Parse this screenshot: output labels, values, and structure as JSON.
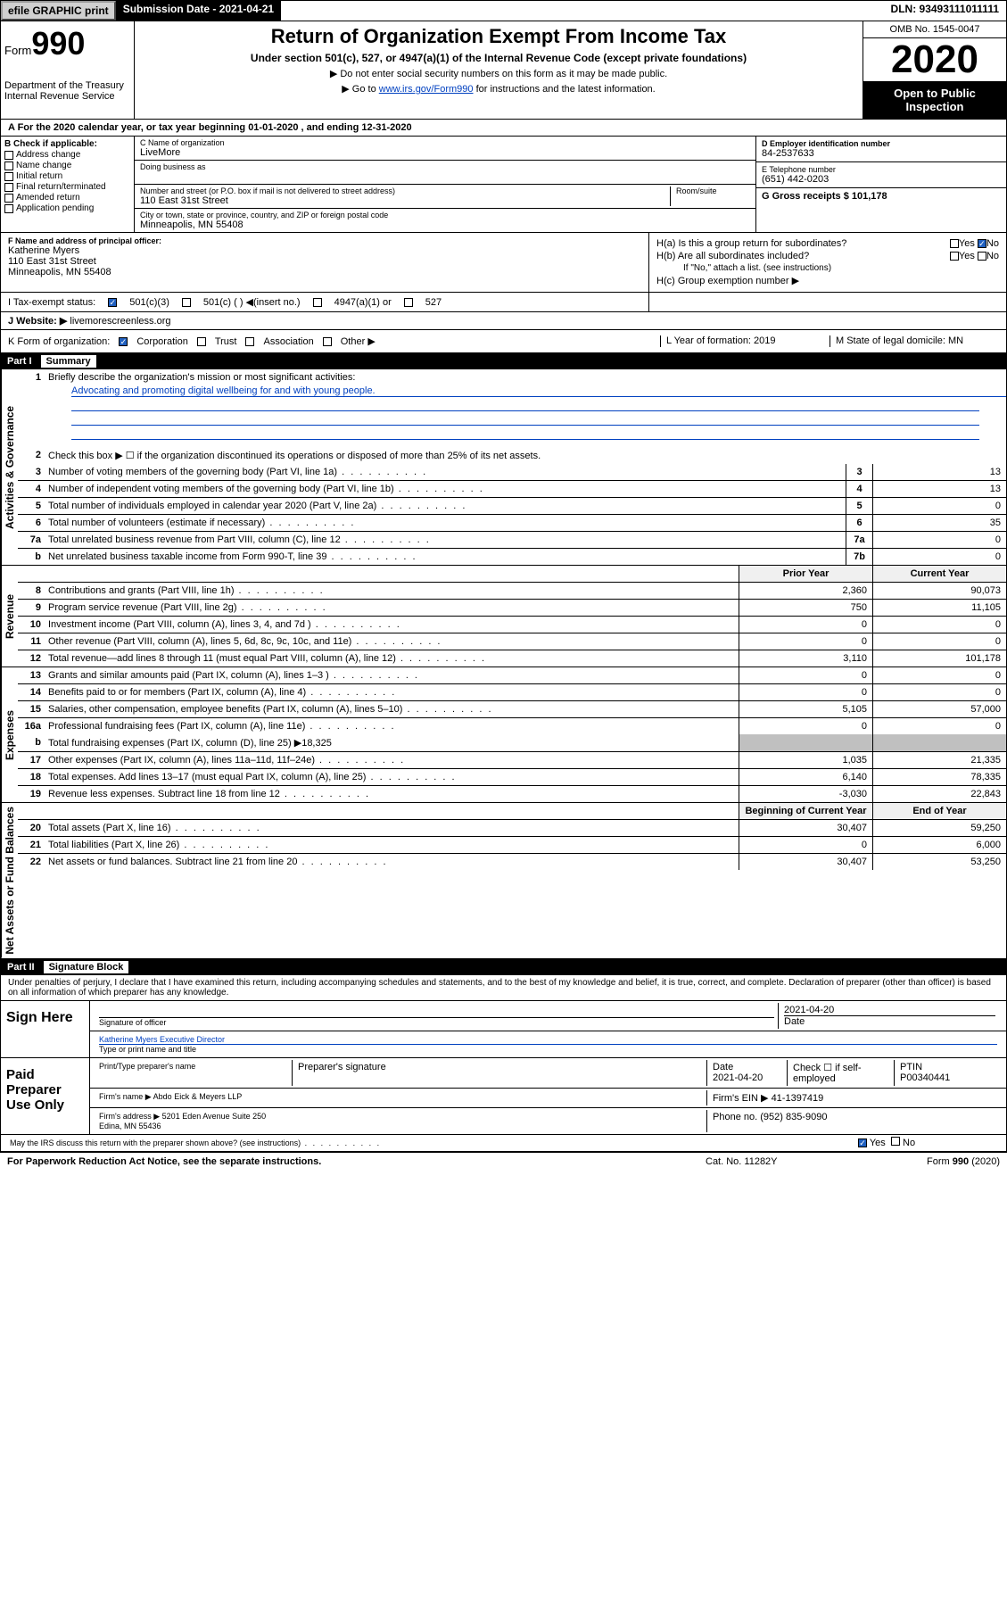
{
  "header": {
    "efile_btn": "efile GRAPHIC print",
    "submission_label": "Submission Date - 2021-04-21",
    "dln": "DLN: 93493111011111"
  },
  "form_head": {
    "form_word": "Form",
    "form_num": "990",
    "dept": "Department of the Treasury\nInternal Revenue Service",
    "title": "Return of Organization Exempt From Income Tax",
    "subtitle": "Under section 501(c), 527, or 4947(a)(1) of the Internal Revenue Code (except private foundations)",
    "line1": "▶ Do not enter social security numbers on this form as it may be made public.",
    "line2_pre": "▶ Go to ",
    "line2_link": "www.irs.gov/Form990",
    "line2_post": " for instructions and the latest information.",
    "omb": "OMB No. 1545-0047",
    "year": "2020",
    "open": "Open to Public Inspection"
  },
  "section_a": "A   For the 2020 calendar year, or tax year beginning 01-01-2020     , and ending 12-31-2020",
  "col_b": {
    "label": "B Check if applicable:",
    "items": [
      "Address change",
      "Name change",
      "Initial return",
      "Final return/terminated",
      "Amended return",
      "Application pending"
    ]
  },
  "col_c": {
    "name_label": "C Name of organization",
    "name": "LiveMore",
    "dba_label": "Doing business as",
    "addr_label": "Number and street (or P.O. box if mail is not delivered to street address)",
    "room_label": "Room/suite",
    "addr": "110 East 31st Street",
    "city_label": "City or town, state or province, country, and ZIP or foreign postal code",
    "city": "Minneapolis, MN  55408",
    "officer_label": "F  Name and address of principal officer:",
    "officer": "Katherine Myers\n110 East 31st Street\nMinneapolis, MN  55408"
  },
  "col_d": {
    "ein_label": "D Employer identification number",
    "ein": "84-2537633",
    "tel_label": "E Telephone number",
    "tel": "(651) 442-0203",
    "gross_label": "G Gross receipts $ 101,178"
  },
  "h_block": {
    "ha": "H(a)  Is this a group return for subordinates?",
    "hb": "H(b)  Are all subordinates included?",
    "hb_note": "If \"No,\" attach a list. (see instructions)",
    "hc": "H(c)  Group exemption number ▶",
    "yes": "Yes",
    "no": "No"
  },
  "row_i": {
    "label": "I     Tax-exempt status:",
    "opts": [
      "501(c)(3)",
      "501(c) (  ) ◀(insert no.)",
      "4947(a)(1) or",
      "527"
    ]
  },
  "row_j": {
    "label": "J     Website: ▶",
    "val": "  livemorescreenless.org"
  },
  "row_k": {
    "label": "K Form of organization:",
    "opts": [
      "Corporation",
      "Trust",
      "Association",
      "Other ▶"
    ],
    "l_label": "L Year of formation: 2019",
    "m_label": "M State of legal domicile: MN"
  },
  "part1": {
    "num": "Part I",
    "title": "Summary",
    "vlabel_ag": "Activities & Governance",
    "vlabel_rev": "Revenue",
    "vlabel_exp": "Expenses",
    "vlabel_na": "Net Assets or Fund Balances",
    "q1": "Briefly describe the organization's mission or most significant activities:",
    "mission": "Advocating and promoting digital wellbeing for and with young people.",
    "q2": "Check this box ▶ ☐  if the organization discontinued its operations or disposed of more than 25% of its net assets.",
    "rows_ag": [
      {
        "n": "3",
        "t": "Number of voting members of the governing body (Part VI, line 1a)",
        "box": "3",
        "v": "13"
      },
      {
        "n": "4",
        "t": "Number of independent voting members of the governing body (Part VI, line 1b)",
        "box": "4",
        "v": "13"
      },
      {
        "n": "5",
        "t": "Total number of individuals employed in calendar year 2020 (Part V, line 2a)",
        "box": "5",
        "v": "0"
      },
      {
        "n": "6",
        "t": "Total number of volunteers (estimate if necessary)",
        "box": "6",
        "v": "35"
      },
      {
        "n": "7a",
        "t": "Total unrelated business revenue from Part VIII, column (C), line 12",
        "box": "7a",
        "v": "0"
      },
      {
        "n": "b",
        "t": "Net unrelated business taxable income from Form 990-T, line 39",
        "box": "7b",
        "v": "0"
      }
    ],
    "col_hdr_prior": "Prior Year",
    "col_hdr_curr": "Current Year",
    "rows_rev": [
      {
        "n": "8",
        "t": "Contributions and grants (Part VIII, line 1h)",
        "p": "2,360",
        "c": "90,073"
      },
      {
        "n": "9",
        "t": "Program service revenue (Part VIII, line 2g)",
        "p": "750",
        "c": "11,105"
      },
      {
        "n": "10",
        "t": "Investment income (Part VIII, column (A), lines 3, 4, and 7d )",
        "p": "0",
        "c": "0"
      },
      {
        "n": "11",
        "t": "Other revenue (Part VIII, column (A), lines 5, 6d, 8c, 9c, 10c, and 11e)",
        "p": "0",
        "c": "0"
      },
      {
        "n": "12",
        "t": "Total revenue—add lines 8 through 11 (must equal Part VIII, column (A), line 12)",
        "p": "3,110",
        "c": "101,178"
      }
    ],
    "rows_exp": [
      {
        "n": "13",
        "t": "Grants and similar amounts paid (Part IX, column (A), lines 1–3 )",
        "p": "0",
        "c": "0"
      },
      {
        "n": "14",
        "t": "Benefits paid to or for members (Part IX, column (A), line 4)",
        "p": "0",
        "c": "0"
      },
      {
        "n": "15",
        "t": "Salaries, other compensation, employee benefits (Part IX, column (A), lines 5–10)",
        "p": "5,105",
        "c": "57,000"
      },
      {
        "n": "16a",
        "t": "Professional fundraising fees (Part IX, column (A), line 11e)",
        "p": "0",
        "c": "0"
      }
    ],
    "row16b": {
      "n": "b",
      "t": "Total fundraising expenses (Part IX, column (D), line 25) ▶18,325"
    },
    "rows_exp2": [
      {
        "n": "17",
        "t": "Other expenses (Part IX, column (A), lines 11a–11d, 11f–24e)",
        "p": "1,035",
        "c": "21,335"
      },
      {
        "n": "18",
        "t": "Total expenses. Add lines 13–17 (must equal Part IX, column (A), line 25)",
        "p": "6,140",
        "c": "78,335"
      },
      {
        "n": "19",
        "t": "Revenue less expenses. Subtract line 18 from line 12",
        "p": "-3,030",
        "c": "22,843"
      }
    ],
    "col_hdr_beg": "Beginning of Current Year",
    "col_hdr_end": "End of Year",
    "rows_na": [
      {
        "n": "20",
        "t": "Total assets (Part X, line 16)",
        "p": "30,407",
        "c": "59,250"
      },
      {
        "n": "21",
        "t": "Total liabilities (Part X, line 26)",
        "p": "0",
        "c": "6,000"
      },
      {
        "n": "22",
        "t": "Net assets or fund balances. Subtract line 21 from line 20",
        "p": "30,407",
        "c": "53,250"
      }
    ]
  },
  "part2": {
    "num": "Part II",
    "title": "Signature Block",
    "decl": "Under penalties of perjury, I declare that I have examined this return, including accompanying schedules and statements, and to the best of my knowledge and belief, it is true, correct, and complete. Declaration of preparer (other than officer) is based on all information of which preparer has any knowledge.",
    "sign_here": "Sign Here",
    "sig_officer": "Signature of officer",
    "sig_date": "2021-04-20",
    "date_label": "Date",
    "typed_name": "Katherine Myers  Executive Director",
    "typed_label": "Type or print name and title",
    "paid": "Paid Preparer Use Only",
    "prep_name_label": "Print/Type preparer's name",
    "prep_sig_label": "Preparer's signature",
    "prep_date": "2021-04-20",
    "check_self": "Check ☐ if self-employed",
    "ptin_label": "PTIN",
    "ptin": "P00340441",
    "firm_name_label": "Firm's name     ▶",
    "firm_name": "Abdo Eick & Meyers LLP",
    "firm_ein_label": "Firm's EIN ▶",
    "firm_ein": "41-1397419",
    "firm_addr_label": "Firm's address ▶",
    "firm_addr": "5201 Eden Avenue Suite 250\nEdina, MN  55436",
    "phone_label": "Phone no.",
    "phone": "(952) 835-9090",
    "discuss": "May the IRS discuss this return with the preparer shown above? (see instructions)",
    "yes": "Yes",
    "no": "No"
  },
  "footer": {
    "pra": "For Paperwork Reduction Act Notice, see the separate instructions.",
    "cat": "Cat. No. 11282Y",
    "form": "Form 990 (2020)"
  }
}
